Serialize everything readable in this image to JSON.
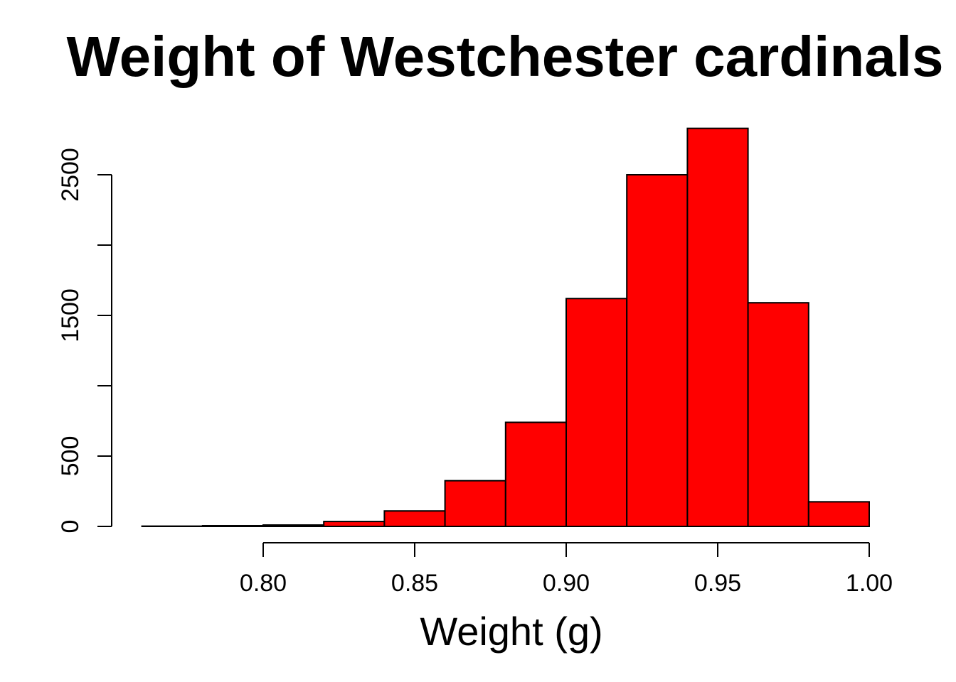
{
  "chart_data": {
    "type": "bar",
    "title": "Weight of Westchester cardinals",
    "xlabel": "Weight (g)",
    "ylabel": "",
    "bin_edges": [
      0.76,
      0.78,
      0.8,
      0.82,
      0.84,
      0.86,
      0.88,
      0.9,
      0.92,
      0.94,
      0.96,
      0.98,
      1.0
    ],
    "values": [
      2,
      5,
      10,
      35,
      110,
      325,
      740,
      1620,
      2500,
      2830,
      1590,
      175
    ],
    "xlim": [
      0.76,
      1.0
    ],
    "ylim": [
      0,
      2900
    ],
    "x_ticks": [
      0.8,
      0.85,
      0.9,
      0.95,
      1.0
    ],
    "x_tick_labels": [
      "0.80",
      "0.85",
      "0.90",
      "0.95",
      "1.00"
    ],
    "y_ticks": [
      0,
      500,
      1000,
      1500,
      2000,
      2500
    ],
    "y_tick_labels": [
      "0",
      "500",
      "",
      "1500",
      "",
      "2500"
    ],
    "bar_color": "#ff0000",
    "grid": false,
    "legend": "none"
  }
}
